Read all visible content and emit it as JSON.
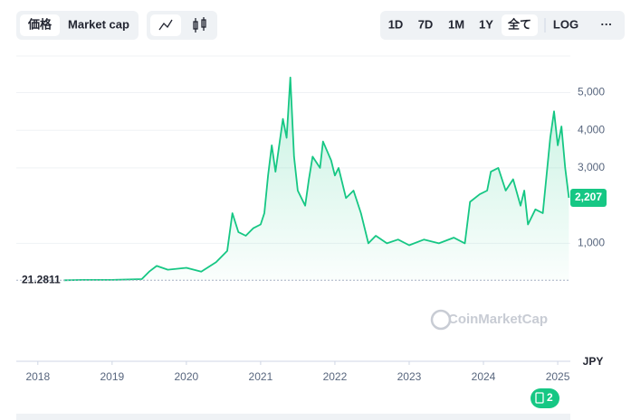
{
  "ui": {
    "mode_buttons": [
      "価格",
      "Market cap"
    ],
    "range_buttons": [
      "1D",
      "7D",
      "1M",
      "1Y",
      "全て"
    ],
    "scale_button": "LOG",
    "more_button": "···",
    "watermark": "CoinMarketCap",
    "currency": "JPY",
    "badge": "2"
  },
  "chart_data": {
    "type": "line",
    "color": "#16c784",
    "start_label": {
      "value": 21.2811,
      "label": "21.2811"
    },
    "last_label": {
      "value": 2207,
      "label": "2,207"
    },
    "xlim": [
      2017.71,
      2025.17
    ],
    "xticks": [
      2018,
      2019,
      2020,
      2021,
      2022,
      2023,
      2024,
      2025
    ],
    "ylim": [
      -2130,
      5970
    ],
    "yticks": [
      {
        "value": 1000,
        "label": "1,000"
      },
      {
        "value": 3000,
        "label": "3,000"
      },
      {
        "value": 4000,
        "label": "4,000"
      },
      {
        "value": 5000,
        "label": "5,000"
      }
    ],
    "grid": true,
    "series": [
      {
        "name": "価格",
        "x": [
          2018.35,
          2018.6,
          2019.0,
          2019.4,
          2019.5,
          2019.6,
          2019.75,
          2020.0,
          2020.2,
          2020.4,
          2020.55,
          2020.62,
          2020.7,
          2020.8,
          2020.9,
          2021.0,
          2021.05,
          2021.1,
          2021.15,
          2021.2,
          2021.3,
          2021.35,
          2021.4,
          2021.45,
          2021.5,
          2021.6,
          2021.65,
          2021.7,
          2021.8,
          2021.84,
          2021.95,
          2022.0,
          2022.05,
          2022.15,
          2022.25,
          2022.35,
          2022.45,
          2022.55,
          2022.7,
          2022.85,
          2023.0,
          2023.2,
          2023.4,
          2023.6,
          2023.75,
          2023.82,
          2023.95,
          2024.05,
          2024.1,
          2024.2,
          2024.3,
          2024.4,
          2024.5,
          2024.55,
          2024.6,
          2024.7,
          2024.8,
          2024.85,
          2024.9,
          2024.95,
          2025.0,
          2025.05,
          2025.1,
          2025.15
        ],
        "values": [
          20,
          30,
          30,
          50,
          250,
          400,
          300,
          350,
          250,
          500,
          800,
          1800,
          1300,
          1200,
          1400,
          1500,
          1800,
          2800,
          3600,
          2900,
          4300,
          3800,
          5400,
          3300,
          2400,
          2000,
          2700,
          3300,
          3000,
          3700,
          3200,
          2800,
          3000,
          2200,
          2400,
          1800,
          1000,
          1200,
          1000,
          1100,
          950,
          1100,
          1000,
          1150,
          1000,
          2100,
          2300,
          2400,
          2900,
          3000,
          2400,
          2700,
          2000,
          2400,
          1500,
          1900,
          1800,
          2800,
          3800,
          4500,
          3600,
          4100,
          3000,
          2207
        ]
      }
    ]
  }
}
